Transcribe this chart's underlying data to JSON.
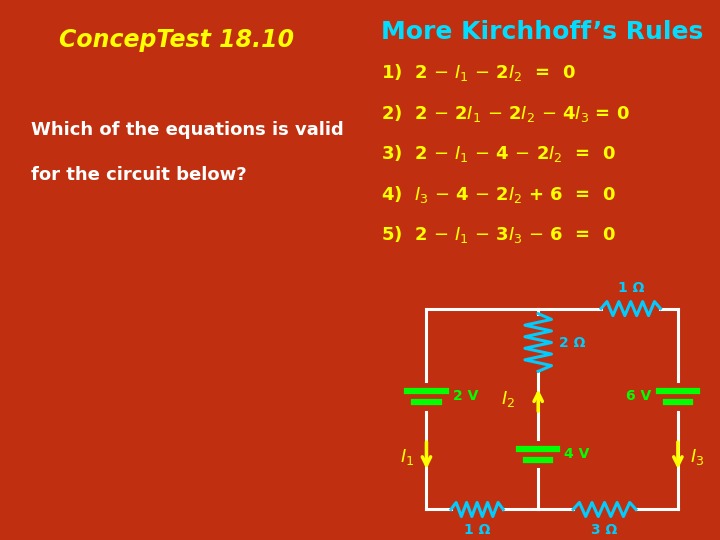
{
  "bg_color_outer": "#C03010",
  "bg_color_box": "#000000",
  "title_left": "ConcepTest 18.10",
  "title_right": "More Kirchhoff’s Rules",
  "title_left_color": "#FFFF00",
  "title_right_color": "#00DDFF",
  "question_lines": [
    "Which of the equations is valid",
    "for the circuit below?"
  ],
  "question_color": "#FFFFFF",
  "answers": [
    [
      "1)",
      " 2 – ",
      "I",
      "1",
      " – 2",
      "I",
      "2",
      "  =  0"
    ],
    [
      "2)",
      " 2 – 2",
      "I",
      "1",
      " – 2",
      "I",
      "2",
      " – 4",
      "I",
      "3",
      " = 0"
    ],
    [
      "3)",
      " 2 – ",
      "I",
      "1",
      " – 4 – 2",
      "I",
      "2",
      "  =  0"
    ],
    [
      "4)",
      " ",
      "I",
      "3",
      " – 4 – 2",
      "I",
      "2",
      " + 6  =  0"
    ],
    [
      "5)",
      " 2 – ",
      "I",
      "1",
      " – 3",
      "I",
      "3",
      " – 6  =  0"
    ]
  ],
  "answer_color": "#FFFF00",
  "border_color": "#CCCC88",
  "wire_color": "#FFFFFF",
  "resistor_color": "#00CCFF",
  "battery_color": "#00FF00",
  "arrow_color": "#FFFF00",
  "label_color": "#FFFF00",
  "font_size_title_l": 17,
  "font_size_title_r": 18,
  "font_size_answer": 13,
  "font_size_question": 13,
  "font_size_circuit": 11
}
